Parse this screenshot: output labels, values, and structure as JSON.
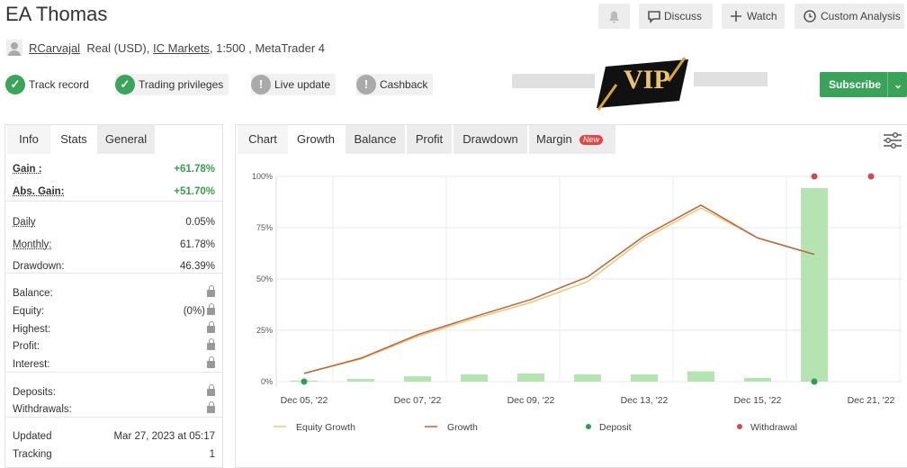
{
  "header": {
    "title": "EA Thomas",
    "buttons": [
      "Discuss",
      "Watch",
      "Custom Analysis"
    ]
  },
  "account": {
    "user": "RCarvajal",
    "type": "Real (USD),",
    "broker": "IC Markets",
    "details": ", 1:500 , MetaTrader 4"
  },
  "badges": [
    {
      "label": "Track record",
      "status": "ok"
    },
    {
      "label": "Trading privileges",
      "status": "ok"
    },
    {
      "label": "Live update",
      "status": "warn"
    },
    {
      "label": "Cashback",
      "status": "warn"
    }
  ],
  "logo": "VIP",
  "subscribe": "Subscribe",
  "left_tabs": [
    "Info",
    "Stats",
    "General"
  ],
  "stats": [
    [
      {
        "label": "Gain :",
        "value": "+61.78%",
        "positive": true
      },
      {
        "label": "Abs. Gain:",
        "value": "+51.70%",
        "positive": true
      }
    ],
    [
      {
        "label": "Daily",
        "value": "0.05%"
      },
      {
        "label": "Monthly:",
        "value": "61.78%"
      },
      {
        "label": "Drawdown:",
        "value": "46.39%"
      }
    ],
    [
      {
        "label": "Balance:",
        "locked": true
      },
      {
        "label": "Equity:",
        "value": "(0%)",
        "locked": true
      },
      {
        "label": "Highest:",
        "locked": true
      },
      {
        "label": "Profit:",
        "locked": true
      },
      {
        "label": "Interest:",
        "locked": true
      }
    ],
    [
      {
        "label": "Deposits:",
        "locked": true
      },
      {
        "label": "Withdrawals:",
        "locked": true
      }
    ],
    [
      {
        "label": "Updated",
        "value": "Mar 27, 2023 at 05:17"
      },
      {
        "label": "Tracking",
        "value": "1"
      }
    ]
  ],
  "chart_tabs": [
    "Chart",
    "Growth",
    "Balance",
    "Profit",
    "Drawdown",
    "Margin"
  ],
  "new_badge": "New",
  "chart_data": {
    "type": "line",
    "categories": [
      "Dec 05, '22",
      null,
      "Dec 07, '22",
      null,
      "Dec 09, '22",
      null,
      "Dec 13, '22",
      null,
      "Dec 15, '22",
      null,
      "Dec 21, '22"
    ],
    "bars": {
      "color": "#a8dea3",
      "values": [
        0.5,
        1.3,
        2.6,
        3.5,
        4,
        3.5,
        3.5,
        5,
        1.8,
        94.3,
        null
      ]
    },
    "series": [
      {
        "name": "Equity Growth",
        "color": "#f0c878",
        "values": [
          4,
          11,
          22,
          30.7,
          38.6,
          48.7,
          69.7,
          84.6,
          70,
          62,
          null
        ]
      },
      {
        "name": "Growth",
        "color": "#b8663f",
        "values": [
          4,
          11.4,
          22.8,
          31.6,
          40,
          51,
          71,
          86,
          70,
          62,
          null
        ]
      },
      {
        "name": "Deposit",
        "color": "#2e9e4f",
        "marker": "dot",
        "values": [
          0,
          null,
          null,
          null,
          null,
          null,
          null,
          null,
          null,
          0,
          null
        ]
      },
      {
        "name": "Withdrawal",
        "color": "#cc4b4b",
        "marker": "dot",
        "values": [
          null,
          null,
          null,
          null,
          null,
          null,
          null,
          null,
          null,
          100,
          100
        ]
      }
    ],
    "ylim": [
      0,
      100
    ],
    "yticks": [
      {
        "value": 0,
        "label": "0%"
      },
      {
        "value": 25,
        "label": "25%"
      },
      {
        "value": 50,
        "label": "50%"
      },
      {
        "value": 75,
        "label": "75%"
      },
      {
        "value": 100,
        "label": "100%"
      }
    ],
    "grid": true
  }
}
